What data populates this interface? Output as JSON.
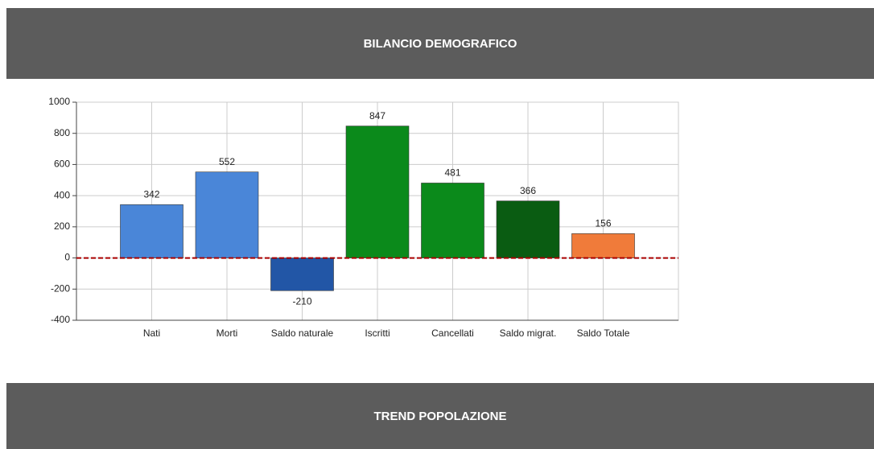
{
  "header": {
    "title": "BILANCIO DEMOGRAFICO"
  },
  "chart_data": {
    "type": "bar",
    "categories": [
      "Nati",
      "Morti",
      "Saldo naturale",
      "Iscritti",
      "Cancellati",
      "Saldo migrat.",
      "Saldo Totale"
    ],
    "values": [
      342,
      552,
      -210,
      847,
      481,
      366,
      156
    ],
    "colors": [
      "#4a86d8",
      "#4a86d8",
      "#2256a6",
      "#0b8a1b",
      "#0b8a1b",
      "#0a5c12",
      "#f07b3a"
    ],
    "ylim": [
      -400,
      1000
    ],
    "yticks": [
      -400,
      -200,
      0,
      200,
      400,
      600,
      800,
      1000
    ],
    "grid": true
  },
  "section": {
    "title": "TREND POPOLAZIONE"
  }
}
